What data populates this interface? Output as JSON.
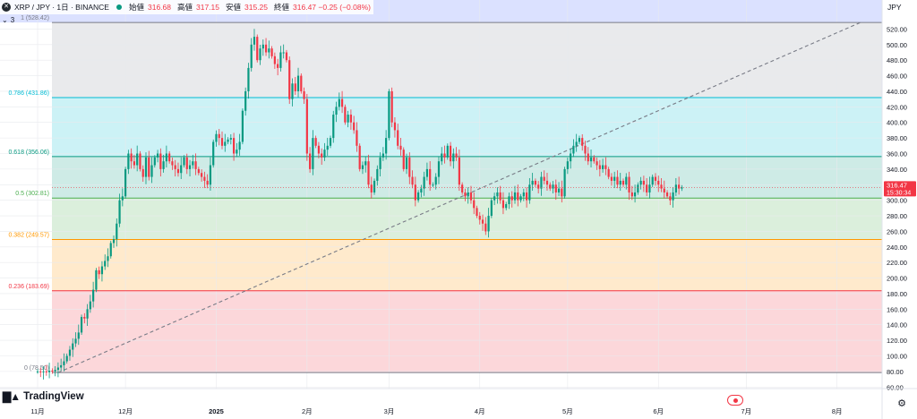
{
  "header": {
    "symbol_icon": "xrp-logo-icon",
    "title": "XRP / JPY · 1日 · BINANCE",
    "open_label": "始値",
    "open_value": "316.68",
    "high_label": "高値",
    "high_value": "317.15",
    "low_label": "安値",
    "low_value": "315.25",
    "close_label": "終値",
    "close_value": "316.47 −0.25 (−0.08%)"
  },
  "sub_toggle": {
    "chevron_icon": "chevron-down-icon",
    "count": "3"
  },
  "currency": "JPY",
  "watermark": {
    "logo_icon": "tradingview-logo-icon",
    "text": "TradingView"
  },
  "settings_icon": "gear-icon",
  "live_badge_icon": "record-icon",
  "price_tag": {
    "value": "316.47",
    "countdown": "15:30:34",
    "color": "#f23645"
  },
  "colors": {
    "up": "#089981",
    "down": "#f23645",
    "trend": "#787b86"
  },
  "chart_data": {
    "type": "candlestick",
    "ylim": [
      58,
      532
    ],
    "y_ticks": [
      60,
      80,
      100,
      120,
      140,
      160,
      180,
      200,
      220,
      240,
      260,
      280,
      300,
      320,
      340,
      360,
      380,
      400,
      420,
      440,
      460,
      480,
      500,
      520
    ],
    "x_labels": [
      {
        "label": "11月",
        "day": 0
      },
      {
        "label": "12月",
        "day": 30
      },
      {
        "label": "2025",
        "day": 61
      },
      {
        "label": "2月",
        "day": 92
      },
      {
        "label": "3月",
        "day": 120
      },
      {
        "label": "4月",
        "day": 151
      },
      {
        "label": "5月",
        "day": 181
      },
      {
        "label": "6月",
        "day": 212
      },
      {
        "label": "7月",
        "day": 242
      },
      {
        "label": "8月",
        "day": 273
      }
    ],
    "fib_levels": [
      {
        "ratio": "1",
        "value": 528.42,
        "label": "1 (528.42)",
        "line": "#787b86",
        "fill": "rgba(120,123,134,0.16)",
        "text_color": "#787b86"
      },
      {
        "ratio": "0.786",
        "value": 431.86,
        "label": "0.786 (431.86)",
        "line": "#00bcd4",
        "fill": "rgba(0,188,212,0.2)",
        "text_color": "#00bcd4"
      },
      {
        "ratio": "0.618",
        "value": 356.06,
        "label": "0.618 (356.06)",
        "line": "#089981",
        "fill": "rgba(8,153,129,0.2)",
        "text_color": "#089981"
      },
      {
        "ratio": "0.5",
        "value": 302.81,
        "label": "0.5 (302.81)",
        "line": "#4caf50",
        "fill": "rgba(76,175,80,0.2)",
        "text_color": "#4caf50"
      },
      {
        "ratio": "0.382",
        "value": 249.57,
        "label": "0.382 (249.57)",
        "line": "#ff9800",
        "fill": "rgba(255,152,0,0.2)",
        "text_color": "#ff9800"
      },
      {
        "ratio": "0.236",
        "value": 183.69,
        "label": "0.236 (183.69)",
        "line": "#f23645",
        "fill": "rgba(242,54,69,0.2)",
        "text_color": "#f23645"
      },
      {
        "ratio": "0",
        "value": 78.5,
        "label": "0 (78.50)",
        "line": "#787b86",
        "fill": null,
        "text_color": "#787b86"
      }
    ],
    "top_band_fill": "rgba(90,120,255,0.22)",
    "trend_line": {
      "from": {
        "day": 7,
        "price": 78.5
      },
      "to": {
        "day": 281,
        "price": 528.42
      }
    },
    "current_price": 316.47,
    "series_close": [
      80,
      79,
      80,
      79,
      81,
      80,
      82,
      85,
      88,
      93,
      100,
      108,
      116,
      122,
      130,
      150,
      148,
      160,
      170,
      185,
      210,
      205,
      215,
      222,
      228,
      245,
      250,
      270,
      300,
      305,
      340,
      360,
      350,
      345,
      360,
      340,
      330,
      355,
      330,
      345,
      355,
      360,
      340,
      350,
      360,
      350,
      345,
      340,
      335,
      345,
      355,
      340,
      345,
      350,
      340,
      335,
      330,
      325,
      320,
      345,
      375,
      385,
      380,
      370,
      375,
      378,
      380,
      360,
      365,
      375,
      415,
      440,
      470,
      500,
      510,
      480,
      495,
      500,
      490,
      495,
      485,
      475,
      470,
      490,
      490,
      480,
      430,
      450,
      440,
      460,
      440,
      430,
      360,
      340,
      380,
      370,
      360,
      355,
      365,
      370,
      380,
      410,
      420,
      430,
      420,
      400,
      410,
      400,
      390,
      370,
      340,
      345,
      350,
      320,
      310,
      325,
      340,
      355,
      360,
      380,
      440,
      400,
      390,
      370,
      365,
      340,
      355,
      330,
      320,
      300,
      310,
      315,
      330,
      340,
      320,
      320,
      330,
      350,
      360,
      355,
      370,
      350,
      360,
      355,
      320,
      310,
      305,
      310,
      300,
      290,
      280,
      275,
      270,
      260,
      280,
      300,
      305,
      310,
      300,
      290,
      295,
      305,
      300,
      310,
      300,
      305,
      310,
      300,
      320,
      325,
      320,
      315,
      330,
      325,
      320,
      315,
      320,
      310,
      315,
      305,
      340,
      350,
      360,
      370,
      375,
      380,
      370,
      360,
      350,
      355,
      350,
      345,
      340,
      345,
      340,
      330,
      325,
      330,
      320,
      325,
      320,
      330,
      310,
      305,
      310,
      320,
      325,
      320,
      310,
      320,
      330,
      325,
      320,
      315,
      310,
      305,
      300,
      310,
      320,
      315,
      316.47
    ]
  }
}
